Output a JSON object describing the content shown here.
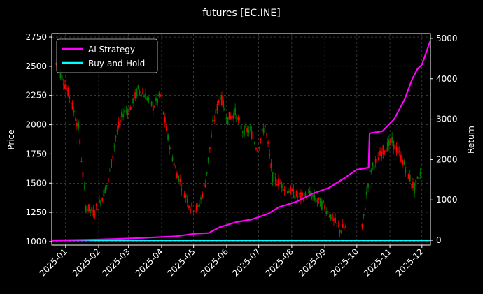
{
  "chart_data": {
    "type": "line",
    "title": "futures [EC.INE]",
    "ylabel_left": "Price",
    "ylabel_right": "Return",
    "x_tick_labels": [
      "2025-01",
      "2025-02",
      "2025-03",
      "2025-04",
      "2025-05",
      "2025-06",
      "2025-07",
      "2025-08",
      "2025-09",
      "2025-10",
      "2025-11",
      "2025-12"
    ],
    "ylim_left": [
      970,
      2780
    ],
    "yticks_left": [
      1000,
      1250,
      1500,
      1750,
      2000,
      2250,
      2500,
      2750
    ],
    "ylim_right": [
      -120,
      5120
    ],
    "yticks_right": [
      0,
      1000,
      2000,
      3000,
      4000,
      5000
    ],
    "x_range": [
      "2024-12-19",
      "2025-12-09"
    ],
    "grid": true,
    "legend_position": "top-left",
    "legend": [
      {
        "name": "AI Strategy",
        "color": "#ff00ff"
      },
      {
        "name": "Buy-and-Hold",
        "color": "#00ffff"
      }
    ],
    "candle_colors": {
      "up": "#ff0000",
      "down": "#008000"
    },
    "candlestick_weekly_close": [
      [
        "2024-12-23",
        2520
      ],
      [
        "2024-12-30",
        2380
      ],
      [
        "2025-01-06",
        2200
      ],
      [
        "2025-01-13",
        1980
      ],
      [
        "2025-01-20",
        1300
      ],
      [
        "2025-01-27",
        1250
      ],
      [
        "2025-02-03",
        1350
      ],
      [
        "2025-02-10",
        1520
      ],
      [
        "2025-02-17",
        1900
      ],
      [
        "2025-02-24",
        2100
      ],
      [
        "2025-03-03",
        2150
      ],
      [
        "2025-03-10",
        2300
      ],
      [
        "2025-03-17",
        2250
      ],
      [
        "2025-03-24",
        2150
      ],
      [
        "2025-03-31",
        2250
      ],
      [
        "2025-04-07",
        1880
      ],
      [
        "2025-04-14",
        1620
      ],
      [
        "2025-04-21",
        1450
      ],
      [
        "2025-04-28",
        1300
      ],
      [
        "2025-05-05",
        1280
      ],
      [
        "2025-05-12",
        1500
      ],
      [
        "2025-05-19",
        2000
      ],
      [
        "2025-05-26",
        2250
      ],
      [
        "2025-06-02",
        2050
      ],
      [
        "2025-06-09",
        2100
      ],
      [
        "2025-06-16",
        1950
      ],
      [
        "2025-06-23",
        1950
      ],
      [
        "2025-06-30",
        1800
      ],
      [
        "2025-07-07",
        2000
      ],
      [
        "2025-07-14",
        1550
      ],
      [
        "2025-07-21",
        1500
      ],
      [
        "2025-07-28",
        1450
      ],
      [
        "2025-08-04",
        1400
      ],
      [
        "2025-08-11",
        1380
      ],
      [
        "2025-08-18",
        1400
      ],
      [
        "2025-08-25",
        1350
      ],
      [
        "2025-09-01",
        1300
      ],
      [
        "2025-09-08",
        1200
      ],
      [
        "2025-09-15",
        1100
      ],
      [
        "2025-09-22",
        1130
      ],
      [
        "2025-10-06",
        1110
      ],
      [
        "2025-10-13",
        1600
      ],
      [
        "2025-10-20",
        1700
      ],
      [
        "2025-10-27",
        1800
      ],
      [
        "2025-11-03",
        1850
      ],
      [
        "2025-11-10",
        1750
      ],
      [
        "2025-11-17",
        1600
      ],
      [
        "2025-11-24",
        1450
      ],
      [
        "2025-12-01",
        1620
      ]
    ],
    "series": [
      {
        "name": "AI Strategy",
        "color": "#ff00ff",
        "points": [
          [
            "2024-12-19",
            0
          ],
          [
            "2025-01-15",
            10
          ],
          [
            "2025-02-15",
            30
          ],
          [
            "2025-03-15",
            60
          ],
          [
            "2025-04-15",
            100
          ],
          [
            "2025-05-01",
            160
          ],
          [
            "2025-05-15",
            180
          ],
          [
            "2025-05-25",
            320
          ],
          [
            "2025-06-10",
            450
          ],
          [
            "2025-06-25",
            520
          ],
          [
            "2025-07-10",
            660
          ],
          [
            "2025-07-20",
            820
          ],
          [
            "2025-08-05",
            950
          ],
          [
            "2025-08-20",
            1150
          ],
          [
            "2025-09-05",
            1300
          ],
          [
            "2025-09-20",
            1550
          ],
          [
            "2025-10-01",
            1750
          ],
          [
            "2025-10-12",
            1800
          ],
          [
            "2025-10-13",
            2650
          ],
          [
            "2025-10-25",
            2700
          ],
          [
            "2025-11-05",
            3000
          ],
          [
            "2025-11-15",
            3500
          ],
          [
            "2025-11-22",
            4000
          ],
          [
            "2025-11-27",
            4250
          ],
          [
            "2025-12-01",
            4350
          ],
          [
            "2025-12-05",
            4650
          ],
          [
            "2025-12-09",
            4950
          ]
        ]
      },
      {
        "name": "Buy-and-Hold",
        "color": "#00ffff",
        "points": [
          [
            "2024-12-19",
            0
          ],
          [
            "2025-12-09",
            0
          ]
        ]
      }
    ]
  }
}
